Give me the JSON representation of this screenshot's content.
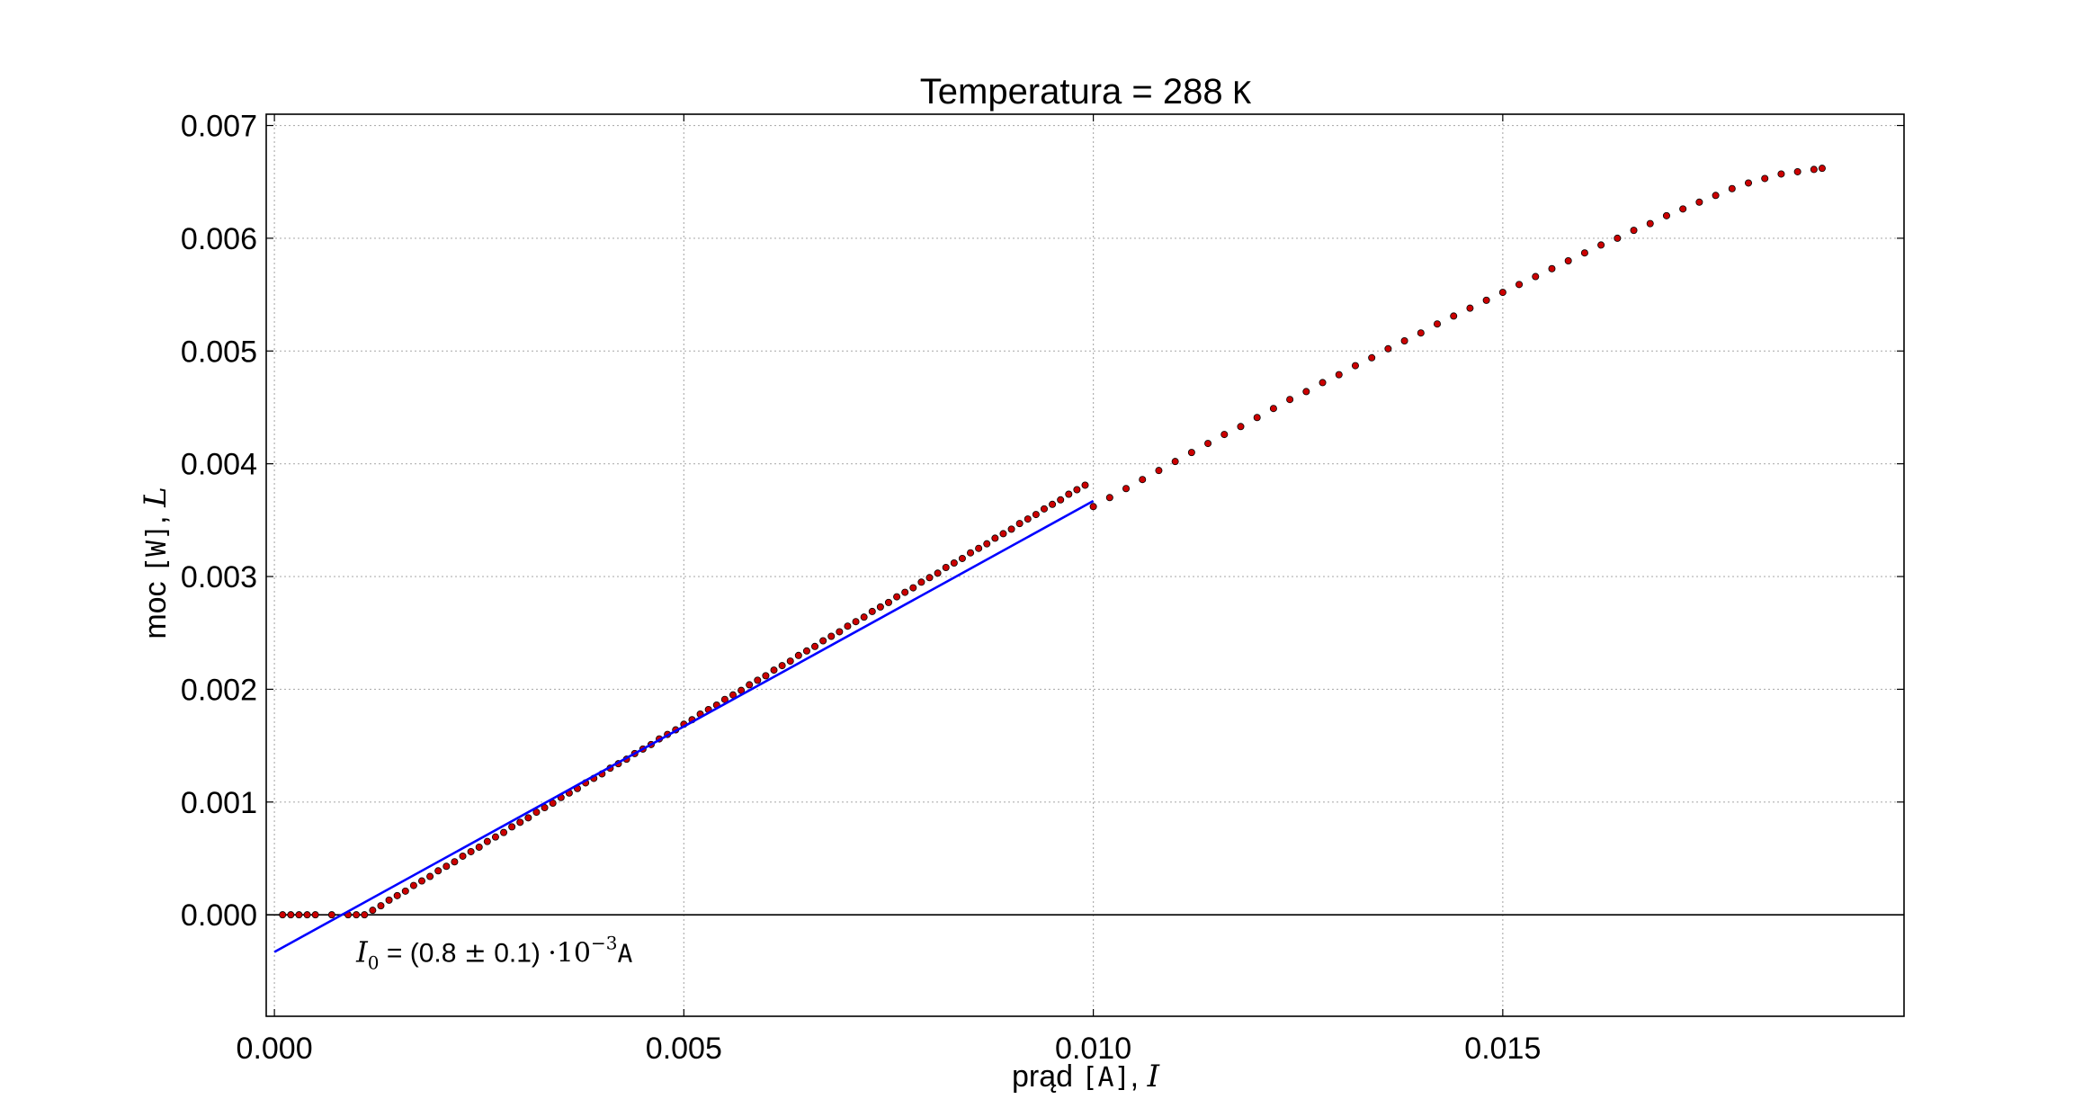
{
  "chart_data": {
    "type": "scatter",
    "title": {
      "text": "Temperatura = 288 ",
      "unit": "K"
    },
    "xlabel": {
      "text": "prąd ",
      "unit": "[A]",
      "sep": ", ",
      "symbol": "I"
    },
    "ylabel": {
      "text": "moc ",
      "unit": "[W]",
      "sep": ", ",
      "symbol": "L"
    },
    "xlim": [
      -0.0001,
      0.0199
    ],
    "ylim": [
      -0.0009,
      0.0071
    ],
    "xticks": [
      {
        "value": 0.0,
        "label": "0.000"
      },
      {
        "value": 0.005,
        "label": "0.005"
      },
      {
        "value": 0.01,
        "label": "0.010"
      },
      {
        "value": 0.015,
        "label": "0.015"
      }
    ],
    "yticks": [
      {
        "value": 0.0,
        "label": "0.000"
      },
      {
        "value": 0.001,
        "label": "0.001"
      },
      {
        "value": 0.002,
        "label": "0.002"
      },
      {
        "value": 0.003,
        "label": "0.003"
      },
      {
        "value": 0.004,
        "label": "0.004"
      },
      {
        "value": 0.005,
        "label": "0.005"
      },
      {
        "value": 0.006,
        "label": "0.006"
      },
      {
        "value": 0.007,
        "label": "0.007"
      }
    ],
    "grid": true,
    "hline_y": 0.0,
    "series": [
      {
        "kind": "scatter",
        "color": "#cc0000",
        "edge_color": "#000000",
        "points": [
          [
            0.0001,
            0.0
          ],
          [
            0.0002,
            0.0
          ],
          [
            0.0003,
            0.0
          ],
          [
            0.0004,
            0.0
          ],
          [
            0.0005,
            0.0
          ],
          [
            0.0007,
            0.0
          ],
          [
            0.0009,
            0.0
          ],
          [
            0.001,
            0.0
          ],
          [
            0.0011,
            0.0
          ],
          [
            0.0012,
            4e-05
          ],
          [
            0.0013,
            8e-05
          ],
          [
            0.0014,
            0.00013
          ],
          [
            0.0015,
            0.00017
          ],
          [
            0.0016,
            0.00021
          ],
          [
            0.0017,
            0.00026
          ],
          [
            0.0018,
            0.0003
          ],
          [
            0.0019,
            0.00034
          ],
          [
            0.002,
            0.00039
          ],
          [
            0.0021,
            0.00043
          ],
          [
            0.0022,
            0.00047
          ],
          [
            0.0023,
            0.00052
          ],
          [
            0.0024,
            0.00056
          ],
          [
            0.0025,
            0.0006
          ],
          [
            0.0026,
            0.00065
          ],
          [
            0.0027,
            0.00069
          ],
          [
            0.0028,
            0.00073
          ],
          [
            0.0029,
            0.00078
          ],
          [
            0.003,
            0.00082
          ],
          [
            0.0031,
            0.00086
          ],
          [
            0.0032,
            0.00091
          ],
          [
            0.0033,
            0.00095
          ],
          [
            0.0034,
            0.00099
          ],
          [
            0.0035,
            0.00104
          ],
          [
            0.0036,
            0.00108
          ],
          [
            0.0037,
            0.00112
          ],
          [
            0.0038,
            0.00117
          ],
          [
            0.0039,
            0.00121
          ],
          [
            0.004,
            0.00125
          ],
          [
            0.0041,
            0.0013
          ],
          [
            0.0042,
            0.00134
          ],
          [
            0.0043,
            0.00138
          ],
          [
            0.0044,
            0.00143
          ],
          [
            0.0045,
            0.00147
          ],
          [
            0.0046,
            0.00151
          ],
          [
            0.0047,
            0.00156
          ],
          [
            0.0048,
            0.0016
          ],
          [
            0.0049,
            0.00164
          ],
          [
            0.005,
            0.00169
          ],
          [
            0.0051,
            0.00173
          ],
          [
            0.0052,
            0.00178
          ],
          [
            0.0053,
            0.00182
          ],
          [
            0.0054,
            0.00186
          ],
          [
            0.0055,
            0.00191
          ],
          [
            0.0056,
            0.00195
          ],
          [
            0.0057,
            0.00199
          ],
          [
            0.0058,
            0.00204
          ],
          [
            0.0059,
            0.00208
          ],
          [
            0.006,
            0.00212
          ],
          [
            0.0061,
            0.00217
          ],
          [
            0.0062,
            0.00221
          ],
          [
            0.0063,
            0.00225
          ],
          [
            0.0064,
            0.0023
          ],
          [
            0.0065,
            0.00234
          ],
          [
            0.0066,
            0.00238
          ],
          [
            0.0067,
            0.00243
          ],
          [
            0.0068,
            0.00247
          ],
          [
            0.0069,
            0.00251
          ],
          [
            0.007,
            0.00256
          ],
          [
            0.0071,
            0.0026
          ],
          [
            0.0072,
            0.00264
          ],
          [
            0.0073,
            0.00269
          ],
          [
            0.0074,
            0.00273
          ],
          [
            0.0075,
            0.00277
          ],
          [
            0.0076,
            0.00282
          ],
          [
            0.0077,
            0.00286
          ],
          [
            0.0078,
            0.0029
          ],
          [
            0.0079,
            0.00295
          ],
          [
            0.008,
            0.00299
          ],
          [
            0.0081,
            0.00303
          ],
          [
            0.0082,
            0.00308
          ],
          [
            0.0083,
            0.00312
          ],
          [
            0.0084,
            0.00316
          ],
          [
            0.0085,
            0.00321
          ],
          [
            0.0086,
            0.00325
          ],
          [
            0.0087,
            0.00329
          ],
          [
            0.0088,
            0.00334
          ],
          [
            0.0089,
            0.00338
          ],
          [
            0.009,
            0.00342
          ],
          [
            0.0091,
            0.00347
          ],
          [
            0.0092,
            0.00351
          ],
          [
            0.0093,
            0.00355
          ],
          [
            0.0094,
            0.0036
          ],
          [
            0.0095,
            0.00364
          ],
          [
            0.0096,
            0.00368
          ],
          [
            0.0097,
            0.00373
          ],
          [
            0.0098,
            0.00377
          ],
          [
            0.0099,
            0.00381
          ],
          [
            0.01,
            0.00362
          ],
          [
            0.0102,
            0.0037
          ],
          [
            0.0104,
            0.00378
          ],
          [
            0.0106,
            0.00386
          ],
          [
            0.0108,
            0.00394
          ],
          [
            0.011,
            0.00402
          ],
          [
            0.0112,
            0.0041
          ],
          [
            0.0114,
            0.00418
          ],
          [
            0.0116,
            0.00426
          ],
          [
            0.0118,
            0.00433
          ],
          [
            0.012,
            0.00441
          ],
          [
            0.0122,
            0.00449
          ],
          [
            0.0124,
            0.00457
          ],
          [
            0.0126,
            0.00464
          ],
          [
            0.0128,
            0.00472
          ],
          [
            0.013,
            0.00479
          ],
          [
            0.0132,
            0.00487
          ],
          [
            0.0134,
            0.00494
          ],
          [
            0.0136,
            0.00502
          ],
          [
            0.0138,
            0.00509
          ],
          [
            0.014,
            0.00516
          ],
          [
            0.0142,
            0.00524
          ],
          [
            0.0144,
            0.00531
          ],
          [
            0.0146,
            0.00538
          ],
          [
            0.0148,
            0.00545
          ],
          [
            0.015,
            0.00552
          ],
          [
            0.0152,
            0.00559
          ],
          [
            0.0154,
            0.00566
          ],
          [
            0.0156,
            0.00573
          ],
          [
            0.0158,
            0.0058
          ],
          [
            0.016,
            0.00587
          ],
          [
            0.0162,
            0.00594
          ],
          [
            0.0164,
            0.006
          ],
          [
            0.0166,
            0.00607
          ],
          [
            0.0168,
            0.00613
          ],
          [
            0.017,
            0.0062
          ],
          [
            0.0172,
            0.00626
          ],
          [
            0.0174,
            0.00632
          ],
          [
            0.0176,
            0.00638
          ],
          [
            0.0178,
            0.00644
          ],
          [
            0.018,
            0.00649
          ],
          [
            0.0182,
            0.00653
          ],
          [
            0.0184,
            0.00657
          ],
          [
            0.0186,
            0.00659
          ],
          [
            0.0188,
            0.00661
          ],
          [
            0.0189,
            0.00662
          ]
        ]
      },
      {
        "kind": "line",
        "color": "#0000ff",
        "points": [
          [
            0.0,
            -0.00033
          ],
          [
            0.01,
            0.00367
          ]
        ]
      }
    ],
    "annotation": {
      "symbol": "I",
      "subscript": "0",
      "text_before": " = (0.8 ",
      "pm": "±",
      "text_mid": " 0.1) ",
      "dot": "·",
      "base": "10",
      "exponent": "−3",
      "unit": "A",
      "x": 0.001,
      "y": -0.00033
    }
  }
}
